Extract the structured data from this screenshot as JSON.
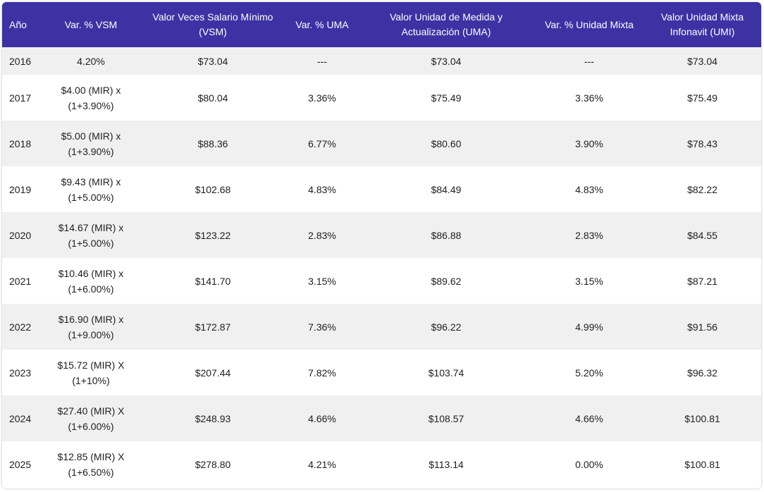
{
  "columns": [
    "Año",
    "Var. % VSM",
    "Valor Veces Salario Mínimo (VSM)",
    "Var. % UMA",
    "Valor Unidad de Medida y Actualización (UMA)",
    "Var. % Unidad Mixta",
    "Valor Unidad Mixta Infonavit (UMI)"
  ],
  "rows": [
    {
      "year": "2016",
      "var_vsm": "4.20%",
      "vsm": "$73.04",
      "var_uma": "---",
      "uma": "$73.04",
      "var_umi": "---",
      "umi": "$73.04"
    },
    {
      "year": "2017",
      "var_vsm": "$4.00 (MIR) x (1+3.90%)",
      "vsm": "$80.04",
      "var_uma": "3.36%",
      "uma": "$75.49",
      "var_umi": "3.36%",
      "umi": "$75.49"
    },
    {
      "year": "2018",
      "var_vsm": "$5.00 (MIR) x (1+3.90%)",
      "vsm": "$88.36",
      "var_uma": "6.77%",
      "uma": "$80.60",
      "var_umi": "3.90%",
      "umi": "$78.43"
    },
    {
      "year": "2019",
      "var_vsm": "$9.43 (MIR) x (1+5.00%)",
      "vsm": "$102.68",
      "var_uma": "4.83%",
      "uma": "$84.49",
      "var_umi": "4.83%",
      "umi": "$82.22"
    },
    {
      "year": "2020",
      "var_vsm": "$14.67 (MIR) x (1+5.00%)",
      "vsm": "$123.22",
      "var_uma": "2.83%",
      "uma": "$86.88",
      "var_umi": "2.83%",
      "umi": "$84.55"
    },
    {
      "year": "2021",
      "var_vsm": "$10.46 (MIR) x (1+6.00%)",
      "vsm": "$141.70",
      "var_uma": "3.15%",
      "uma": "$89.62",
      "var_umi": "3.15%",
      "umi": "$87.21"
    },
    {
      "year": "2022",
      "var_vsm": "$16.90 (MIR) x (1+9.00%)",
      "vsm": "$172.87",
      "var_uma": "7.36%",
      "uma": "$96.22",
      "var_umi": "4.99%",
      "umi": "$91.56"
    },
    {
      "year": "2023",
      "var_vsm": "$15.72 (MIR) X (1+10%)",
      "vsm": "$207.44",
      "var_uma": "7.82%",
      "uma": "$103.74",
      "var_umi": "5.20%",
      "umi": "$96.32"
    },
    {
      "year": "2024",
      "var_vsm": "$27.40 (MIR) X (1+6.00%)",
      "vsm": "$248.93",
      "var_uma": "4.66%",
      "uma": "$108.57",
      "var_umi": "4.66%",
      "umi": "$100.81"
    },
    {
      "year": "2025",
      "var_vsm": "$12.85 (MIR) X (1+6.50%)",
      "vsm": "$278.80",
      "var_uma": "4.21%",
      "uma": "$113.14",
      "var_umi": "0.00%",
      "umi": "$100.81"
    }
  ],
  "colors": {
    "header_bg": "#3c32a4",
    "header_text": "#ffffff",
    "row_stripe": "#f0f0f0",
    "row_plain": "#ffffff"
  }
}
